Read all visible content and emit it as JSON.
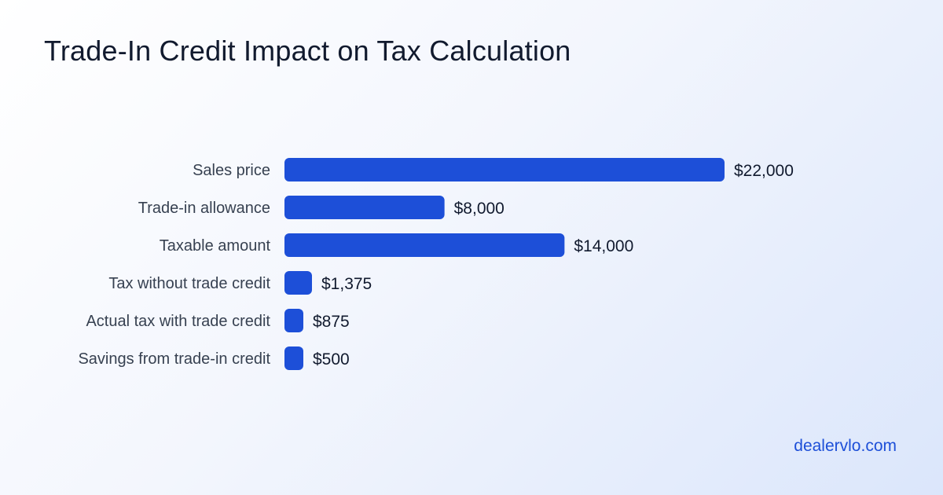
{
  "chart_data": {
    "type": "bar",
    "orientation": "horizontal",
    "title": "Trade-In Credit Impact on Tax Calculation",
    "categories": [
      "Sales price",
      "Trade-in allowance",
      "Taxable amount",
      "Tax without trade credit",
      "Actual tax with trade credit",
      "Savings from trade-in credit"
    ],
    "values": [
      22000,
      8000,
      14000,
      1375,
      875,
      500
    ],
    "value_labels": [
      "$22,000",
      "$8,000",
      "$14,000",
      "$1,375",
      "$875",
      "$500"
    ],
    "xlim": [
      0,
      22000
    ],
    "grid": false,
    "bar_color": "#1d4fd8"
  },
  "footer": {
    "brand": "dealervlo.com"
  }
}
